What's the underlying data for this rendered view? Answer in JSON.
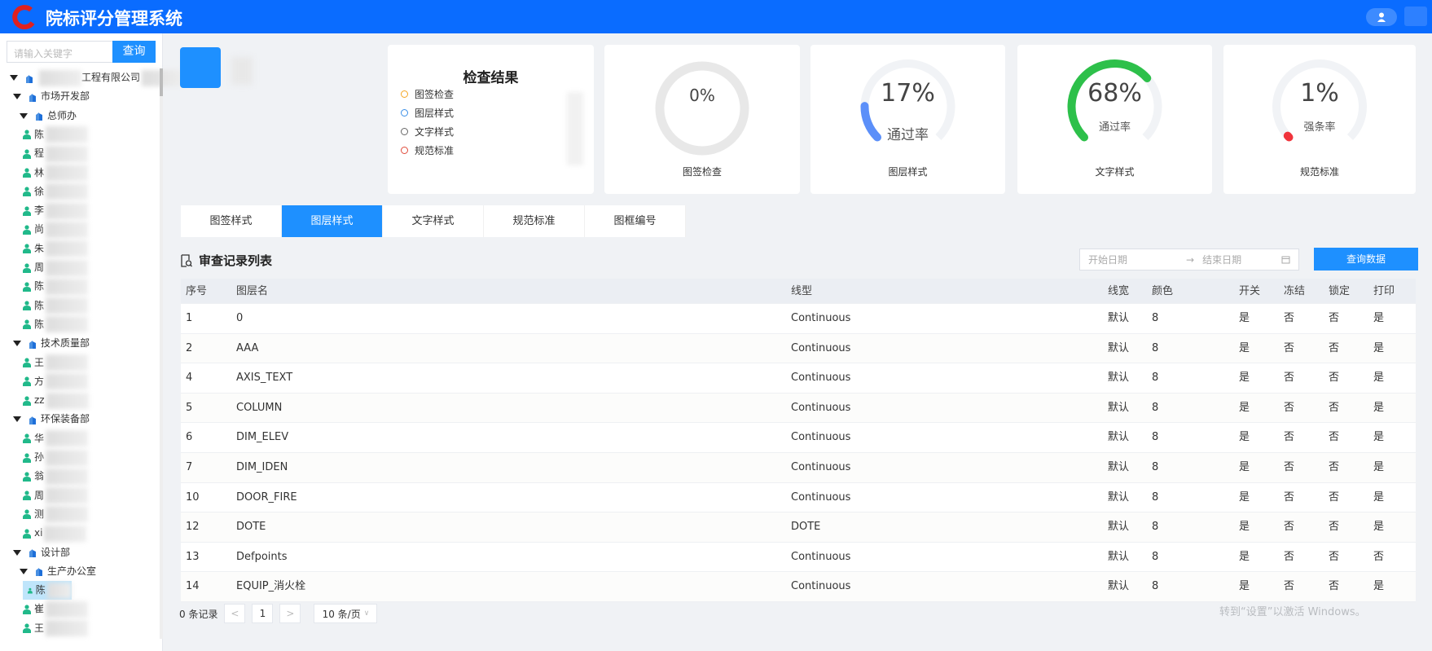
{
  "header": {
    "title": "院标评分管理系统",
    "brand_color": "#0a6cff",
    "logo_icon": "red-c-logo",
    "user_icon": "user-icon"
  },
  "sidebar": {
    "search_placeholder": "请输入关键字",
    "search_button": "查询",
    "tree": [
      {
        "level": 0,
        "type": "org",
        "label": "工程有限公司",
        "blurred": true
      },
      {
        "level": 1,
        "type": "org",
        "label": "市场开发部"
      },
      {
        "level": 2,
        "type": "org",
        "label": "总师办"
      },
      {
        "level": 3,
        "type": "person",
        "label": "陈"
      },
      {
        "level": 3,
        "type": "person",
        "label": "程"
      },
      {
        "level": 3,
        "type": "person",
        "label": "林"
      },
      {
        "level": 3,
        "type": "person",
        "label": "徐"
      },
      {
        "level": 3,
        "type": "person",
        "label": "李"
      },
      {
        "level": 3,
        "type": "person",
        "label": "尚"
      },
      {
        "level": 3,
        "type": "person",
        "label": "朱"
      },
      {
        "level": 3,
        "type": "person",
        "label": "周"
      },
      {
        "level": 3,
        "type": "person",
        "label": "陈"
      },
      {
        "level": 3,
        "type": "person",
        "label": "陈"
      },
      {
        "level": 3,
        "type": "person",
        "label": "陈"
      },
      {
        "level": 1,
        "type": "org",
        "label": "技术质量部"
      },
      {
        "level": 3,
        "type": "person",
        "label": "王"
      },
      {
        "level": 3,
        "type": "person",
        "label": "方"
      },
      {
        "level": 3,
        "type": "person",
        "label": "zz"
      },
      {
        "level": 1,
        "type": "org",
        "label": "环保装备部"
      },
      {
        "level": 3,
        "type": "person",
        "label": "华"
      },
      {
        "level": 3,
        "type": "person",
        "label": "孙"
      },
      {
        "level": 3,
        "type": "person",
        "label": "翁"
      },
      {
        "level": 3,
        "type": "person",
        "label": "周"
      },
      {
        "level": 3,
        "type": "person",
        "label": "测"
      },
      {
        "level": 3,
        "type": "person",
        "label": "xi"
      },
      {
        "level": 1,
        "type": "org",
        "label": "设计部"
      },
      {
        "level": 2,
        "type": "org",
        "label": "生产办公室"
      },
      {
        "level": 3,
        "type": "person",
        "label": "陈",
        "selected": true
      },
      {
        "level": 3,
        "type": "person",
        "label": "崔"
      },
      {
        "level": 3,
        "type": "person",
        "label": "王"
      }
    ]
  },
  "result_card": {
    "title": "检查结果",
    "items": [
      {
        "label": "图签检查",
        "color": "#f5a623"
      },
      {
        "label": "图层样式",
        "color": "#3a8ee6"
      },
      {
        "label": "文字样式",
        "color": "#666666"
      },
      {
        "label": "规范标准",
        "color": "#e04a3a"
      }
    ]
  },
  "gauges": [
    {
      "value_text": "0%",
      "value": 0,
      "sub": "",
      "label": "图签检查",
      "full_ring": true,
      "color": "#e8e8e8"
    },
    {
      "value_text": "17%",
      "value": 17,
      "sub": "通过率",
      "label": "图层样式",
      "color": "#5b8ff9"
    },
    {
      "value_text": "68%",
      "value": 68,
      "sub": "通过率",
      "label": "文字样式",
      "color": "#2dc04a"
    },
    {
      "value_text": "1%",
      "value": 1,
      "sub": "强条率",
      "label": "规范标准",
      "color": "#f0343c"
    }
  ],
  "tabs": [
    {
      "label": "图签样式"
    },
    {
      "label": "图层样式",
      "active": true
    },
    {
      "label": "文字样式"
    },
    {
      "label": "规范标准"
    },
    {
      "label": "图框编号"
    }
  ],
  "section": {
    "title": "审查记录列表",
    "start_placeholder": "开始日期",
    "separator": "→",
    "end_placeholder": "结束日期",
    "query_button": "查询数据"
  },
  "table": {
    "columns": [
      "序号",
      "图层名",
      "线型",
      "线宽",
      "颜色",
      "开关",
      "冻结",
      "锁定",
      "打印"
    ],
    "rows": [
      [
        "1",
        "0",
        "Continuous",
        "默认",
        "8",
        "是",
        "否",
        "否",
        "是"
      ],
      [
        "2",
        "AAA",
        "Continuous",
        "默认",
        "8",
        "是",
        "否",
        "否",
        "是"
      ],
      [
        "4",
        "AXIS_TEXT",
        "Continuous",
        "默认",
        "8",
        "是",
        "否",
        "否",
        "是"
      ],
      [
        "5",
        "COLUMN",
        "Continuous",
        "默认",
        "8",
        "是",
        "否",
        "否",
        "是"
      ],
      [
        "6",
        "DIM_ELEV",
        "Continuous",
        "默认",
        "8",
        "是",
        "否",
        "否",
        "是"
      ],
      [
        "7",
        "DIM_IDEN",
        "Continuous",
        "默认",
        "8",
        "是",
        "否",
        "否",
        "是"
      ],
      [
        "10",
        "DOOR_FIRE",
        "Continuous",
        "默认",
        "8",
        "是",
        "否",
        "否",
        "是"
      ],
      [
        "12",
        "DOTE",
        "DOTE",
        "默认",
        "8",
        "是",
        "否",
        "否",
        "是"
      ],
      [
        "13",
        "Defpoints",
        "Continuous",
        "默认",
        "8",
        "是",
        "否",
        "否",
        "否"
      ],
      [
        "14",
        "EQUIP_消火栓",
        "Continuous",
        "默认",
        "8",
        "是",
        "否",
        "否",
        "是"
      ]
    ]
  },
  "pager": {
    "total": "0 条记录",
    "prev": "<",
    "page": "1",
    "next": ">",
    "page_size": "10 条/页"
  },
  "watermark": "转到“设置”以激活 Windows。"
}
